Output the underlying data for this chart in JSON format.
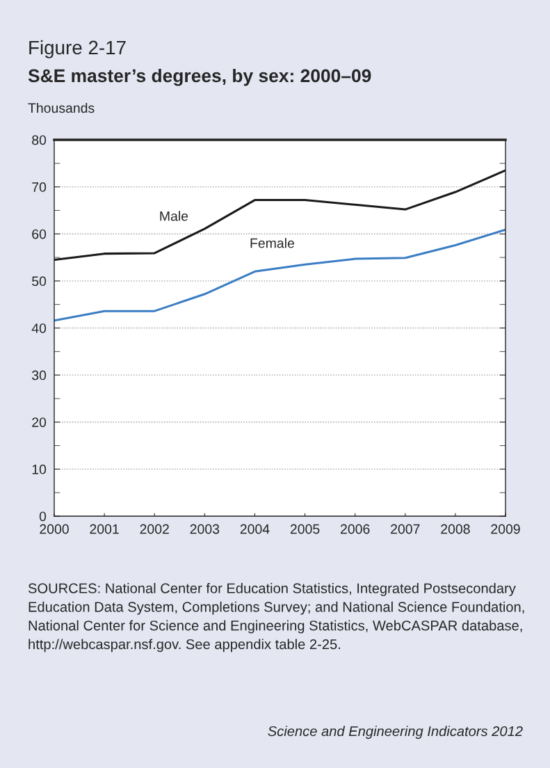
{
  "chart_data": {
    "type": "line",
    "title": "Figure 2-17",
    "subtitle": "S&E master’s degrees, by sex: 2000–09",
    "ylabel": "Thousands",
    "x": [
      2000,
      2001,
      2002,
      2003,
      2004,
      2005,
      2006,
      2007,
      2008,
      2009
    ],
    "series": [
      {
        "name": "Male",
        "color": "#1a1a1a",
        "values": [
          54.5,
          55.8,
          55.9,
          61.1,
          67.2,
          67.2,
          66.2,
          65.2,
          68.9,
          73.5
        ]
      },
      {
        "name": "Female",
        "color": "#3a7dc4",
        "values": [
          41.6,
          43.6,
          43.6,
          47.2,
          52.0,
          53.5,
          54.7,
          54.9,
          57.6,
          60.9
        ]
      }
    ],
    "xlim": [
      2000,
      2009
    ],
    "xticks": [
      2000,
      2001,
      2002,
      2003,
      2004,
      2005,
      2006,
      2007,
      2008,
      2009
    ],
    "ylim": [
      0,
      80
    ],
    "yticks": [
      0,
      {
        "value": 5,
        "label": null
      },
      10,
      {
        "value": 15,
        "label": null
      },
      20,
      {
        "value": 25,
        "label": null
      },
      30,
      {
        "value": 35,
        "label": null
      },
      40,
      {
        "value": 45,
        "label": null
      },
      50,
      {
        "value": 55,
        "label": null
      },
      60,
      {
        "value": 65,
        "label": null
      },
      70,
      {
        "value": 75,
        "label": null
      },
      80
    ],
    "grid": "y",
    "legend": false,
    "marker": "none",
    "line_style": "solid",
    "annotations": [
      "SOURCES: National Center for Education Statistics, Integrated Postsecondary Education Data System, Completions Survey; and National Science Foundation, National Center for Science and Engineering Statistics, WebCASPAR database, http://webcaspar.nsf.gov. See appendix table 2-25.",
      "Science and Engineering Indicators 2012"
    ]
  }
}
